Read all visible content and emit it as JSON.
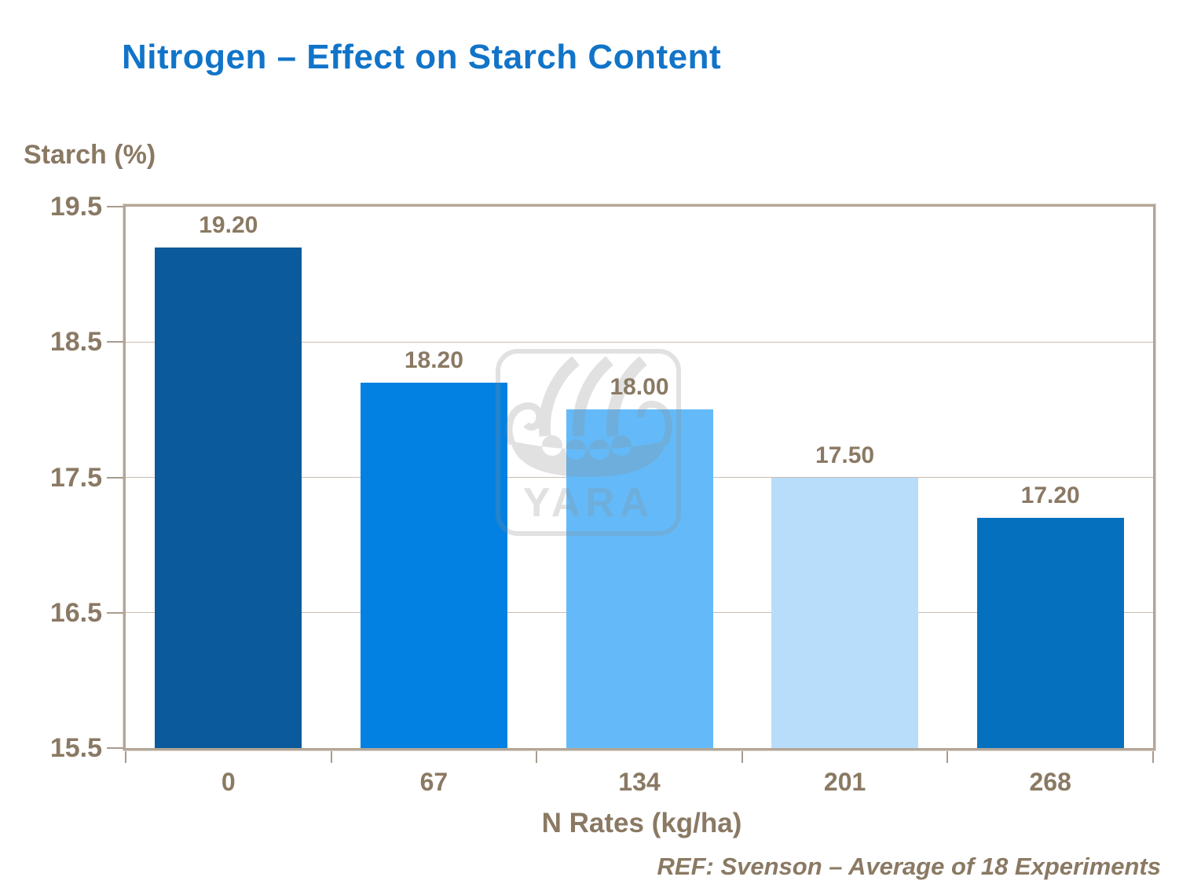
{
  "slide": {
    "footnote": "REF: Svenson – Average of 18 Experiments"
  },
  "watermark": {
    "text": "YARA"
  },
  "colors": {
    "title_blue": "#1174C8",
    "axis_text_brown": "#8A7963",
    "axis_line_tan": "#B3A698",
    "gridline_tan": "#C9BDB1"
  },
  "chart_data": {
    "type": "bar",
    "title": "Nitrogen – Effect on Starch Content",
    "categories": [
      "0",
      "67",
      "134",
      "201",
      "268"
    ],
    "values": [
      19.2,
      18.2,
      18.0,
      17.5,
      17.2
    ],
    "value_labels": [
      "19.20",
      "18.20",
      "18.00",
      "17.50",
      "17.20"
    ],
    "bar_colors": [
      "#0A5A9C",
      "#0381E2",
      "#64BAF8",
      "#B8DDFB",
      "#0570BE"
    ],
    "xlabel": "N Rates (kg/ha)",
    "ylabel": "Starch (%)",
    "ylim": [
      15.5,
      19.5
    ],
    "yticks": [
      19.5,
      18.5,
      17.5,
      16.5,
      15.5
    ],
    "ytick_labels": [
      "19.5",
      "18.5",
      "17.5",
      "16.5",
      "15.5"
    ],
    "grid": "horizontal",
    "legend": "none"
  }
}
